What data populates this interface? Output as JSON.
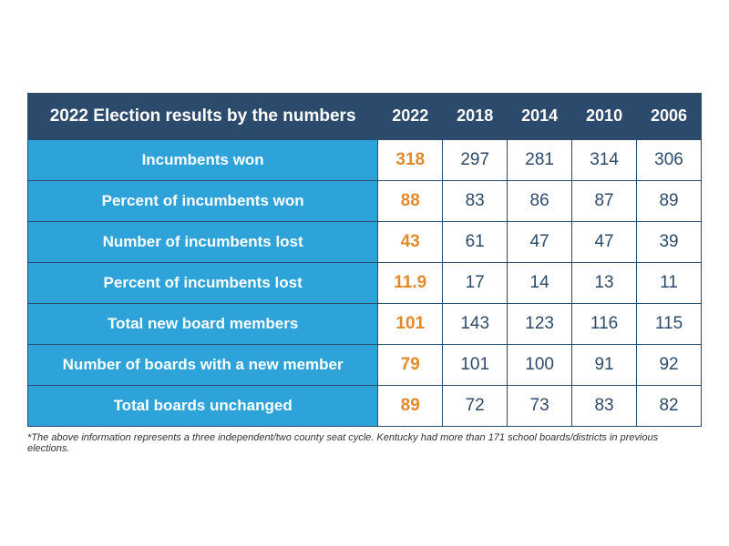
{
  "colors": {
    "header_bg": "#2c4a6b",
    "header_text": "#ffffff",
    "rowlabel_bg": "#2ea3d9",
    "rowlabel_text": "#ffffff",
    "cell_bg": "#ffffff",
    "cell_text": "#2c4a6b",
    "highlight_text": "#e08a2c",
    "border": "#2c4a6b",
    "footnote_text": "#333333"
  },
  "typography": {
    "header_fontsize": 18,
    "rowlabel_fontsize": 17,
    "cell_fontsize": 19,
    "footnote_fontsize": 11,
    "font_family": "sans-serif"
  },
  "layout": {
    "label_col_width_pct": 52,
    "year_col_width_pct": 9.6
  },
  "table": {
    "title": "2022 Election results by the numbers",
    "years": [
      "2022",
      "2018",
      "2014",
      "2010",
      "2006"
    ],
    "highlight_year_index": 0,
    "rows": [
      {
        "label": "Incumbents won",
        "values": [
          "318",
          "297",
          "281",
          "314",
          "306"
        ]
      },
      {
        "label": "Percent of incumbents won",
        "values": [
          "88",
          "83",
          "86",
          "87",
          "89"
        ]
      },
      {
        "label": "Number of incumbents lost",
        "values": [
          "43",
          "61",
          "47",
          "47",
          "39"
        ]
      },
      {
        "label": "Percent of incumbents lost",
        "values": [
          "11.9",
          "17",
          "14",
          "13",
          "11"
        ]
      },
      {
        "label": "Total new board members",
        "values": [
          "101",
          "143",
          "123",
          "116",
          "115"
        ]
      },
      {
        "label": "Number of boards with a new member",
        "values": [
          "79",
          "101",
          "100",
          "91",
          "92"
        ]
      },
      {
        "label": "Total boards unchanged",
        "values": [
          "89",
          "72",
          "73",
          "83",
          "82"
        ]
      }
    ]
  },
  "footnote": "*The above information represents a three independent/two county seat cycle. Kentucky had more than 171 school boards/districts in previous elections."
}
